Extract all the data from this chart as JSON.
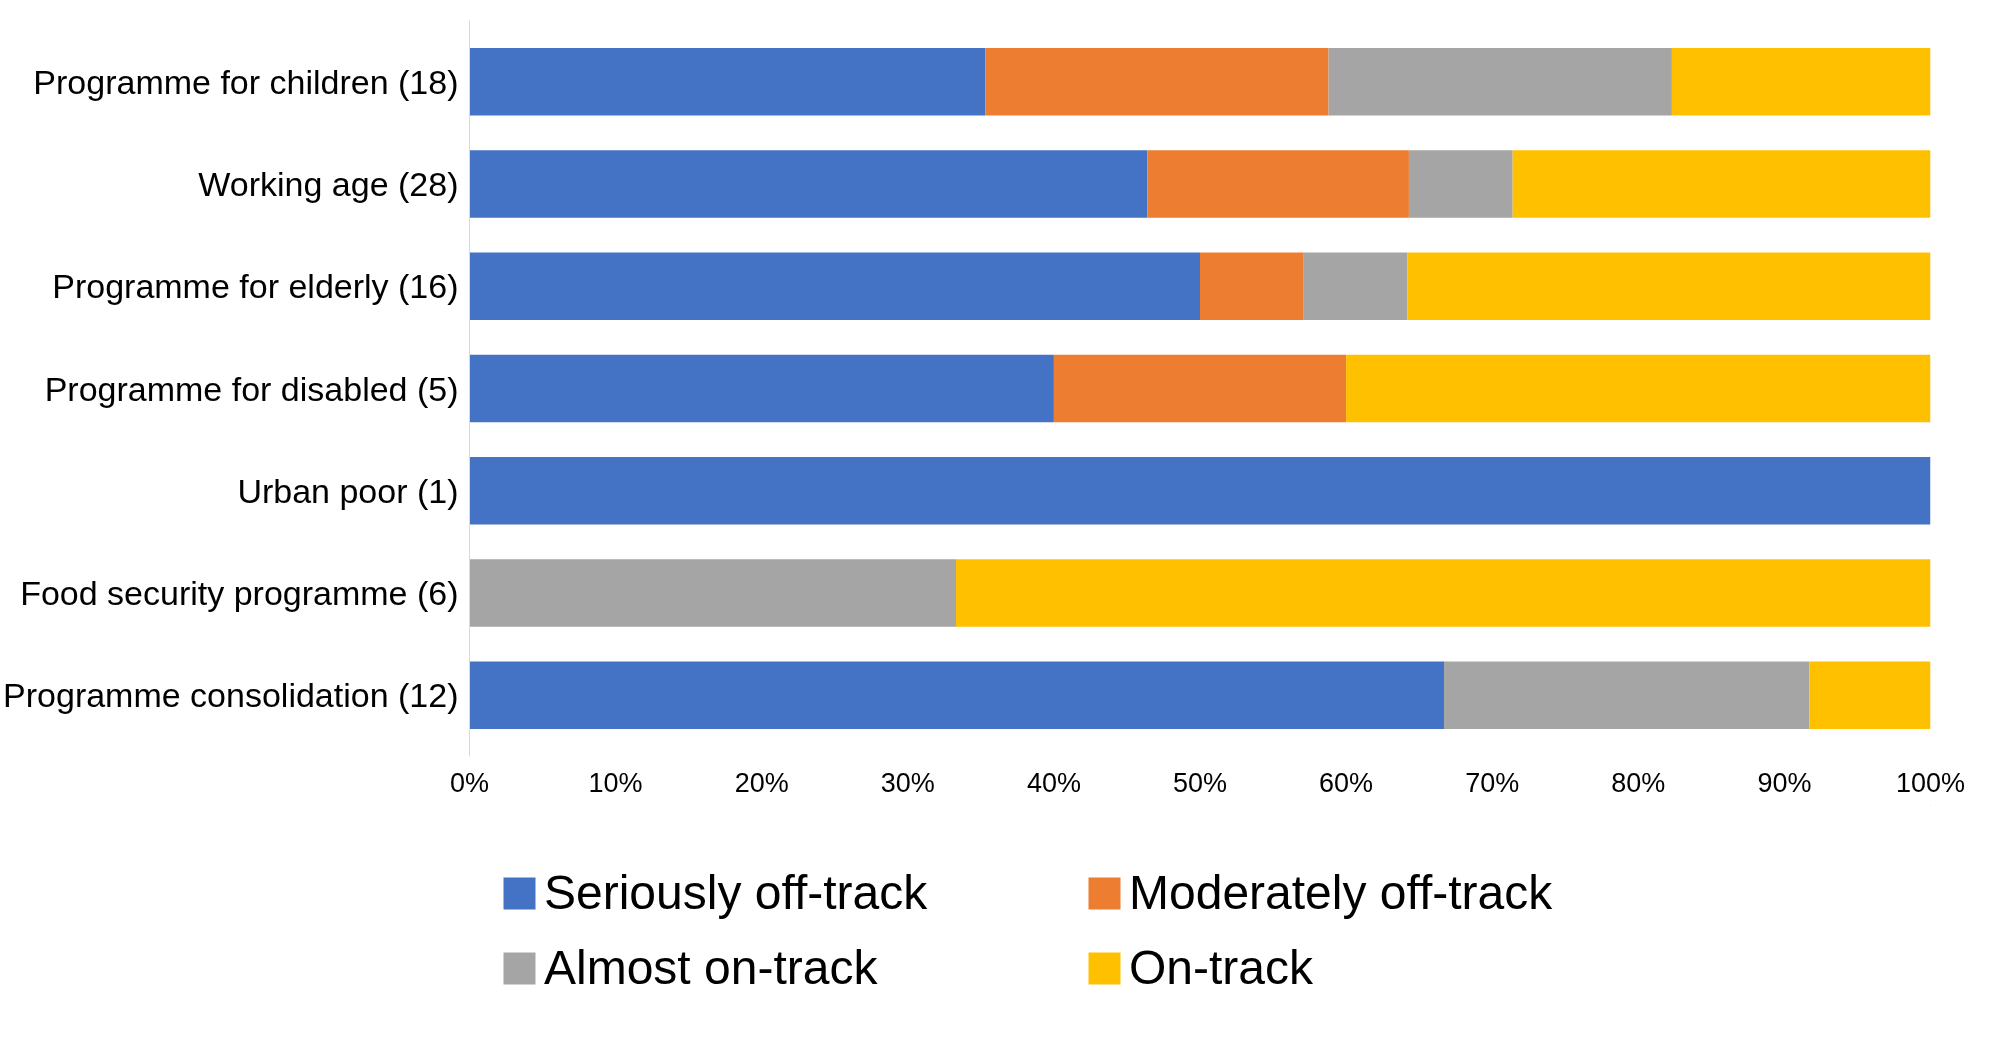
{
  "chart_data": {
    "type": "bar",
    "orientation": "horizontal",
    "stacked": true,
    "categories": [
      "Programme for children (18)",
      "Working age (28)",
      "Programme for elderly (16)",
      "Programme for disabled (5)",
      "Urban poor (1)",
      "Food security programme (6)",
      "Programme consolidation (12)"
    ],
    "series": [
      {
        "name": "Seriously off-track",
        "color": "#4472c4",
        "values": [
          35.3,
          46.4,
          50.0,
          40.0,
          100.0,
          0,
          66.7
        ]
      },
      {
        "name": "Moderately off-track",
        "color": "#ed7d31",
        "values": [
          23.5,
          17.9,
          7.1,
          20.0,
          0,
          0,
          0
        ]
      },
      {
        "name": "Almost on-track",
        "color": "#a5a5a5",
        "values": [
          23.5,
          7.1,
          7.1,
          0,
          0,
          33.3,
          25.0
        ]
      },
      {
        "name": "On-track",
        "color": "#ffc000",
        "values": [
          17.7,
          28.6,
          35.8,
          40.0,
          0,
          66.7,
          8.3
        ]
      }
    ],
    "xlim": [
      0,
      100
    ],
    "xticks": [
      {
        "value": 0,
        "label": "0%"
      },
      {
        "value": 10,
        "label": "10%"
      },
      {
        "value": 20,
        "label": "20%"
      },
      {
        "value": 30,
        "label": "30%"
      },
      {
        "value": 40,
        "label": "40%"
      },
      {
        "value": 50,
        "label": "50%"
      },
      {
        "value": 60,
        "label": "60%"
      },
      {
        "value": 70,
        "label": "70%"
      },
      {
        "value": 80,
        "label": "80%"
      },
      {
        "value": 90,
        "label": "90%"
      },
      {
        "value": 100,
        "label": "100%"
      }
    ],
    "grid": false,
    "legend": "bottom"
  }
}
